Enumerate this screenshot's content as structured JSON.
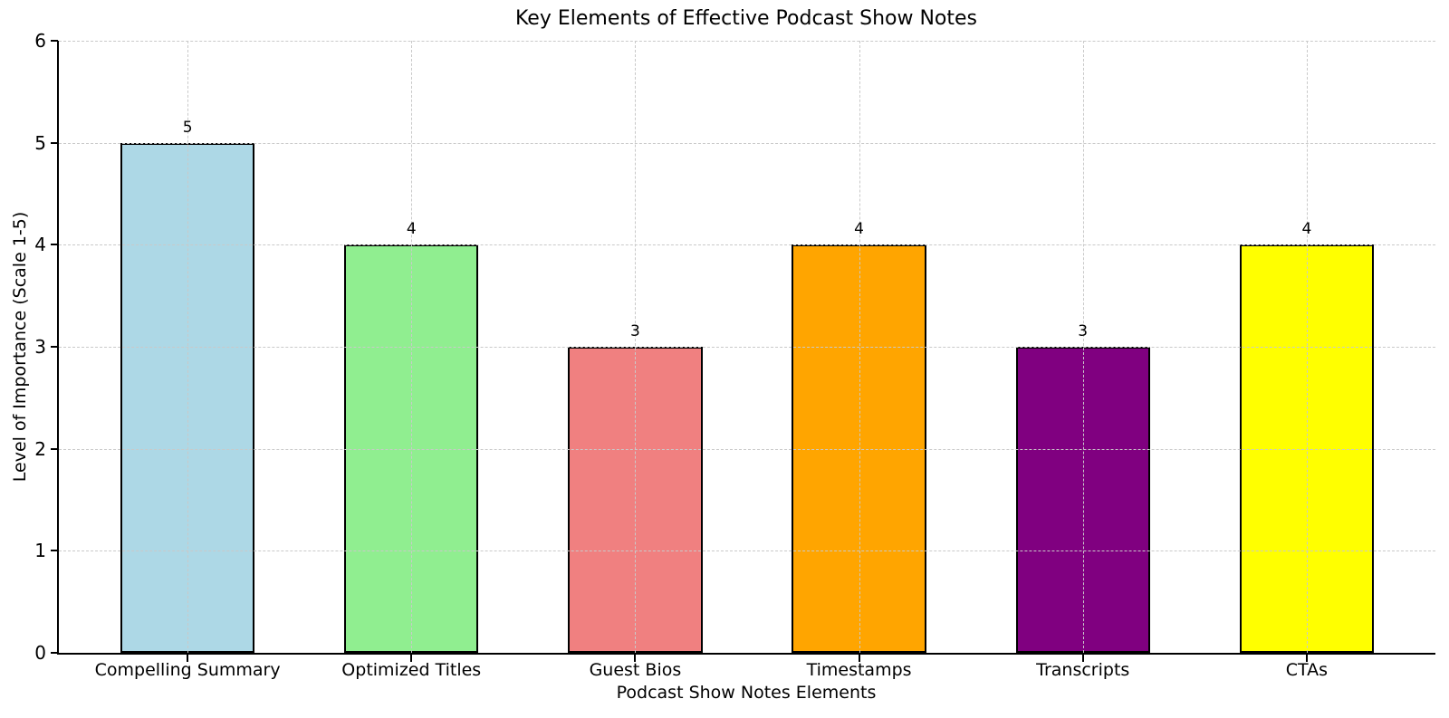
{
  "chart_data": {
    "type": "bar",
    "title": "Key Elements of Effective Podcast Show Notes",
    "xlabel": "Podcast Show Notes Elements",
    "ylabel": "Level of Importance (Scale 1-5)",
    "categories": [
      "Compelling Summary",
      "Optimized Titles",
      "Guest Bios",
      "Timestamps",
      "Transcripts",
      "CTAs"
    ],
    "values": [
      5,
      4,
      3,
      4,
      3,
      4
    ],
    "value_labels": [
      "5",
      "4",
      "3",
      "4",
      "3",
      "4"
    ],
    "bar_colors": [
      "#ADD8E6",
      "#90EE90",
      "#F08080",
      "#FFA500",
      "#800080",
      "#FFFF00"
    ],
    "bar_edge_color": "#000000",
    "ylim": [
      0,
      6
    ],
    "yticks": [
      0,
      1,
      2,
      3,
      4,
      5,
      6
    ],
    "grid": "both-axes-dashed",
    "grid_color": "#c9c9c9",
    "grid_above_bars": true,
    "legend": "none",
    "background_color": "#ffffff"
  }
}
